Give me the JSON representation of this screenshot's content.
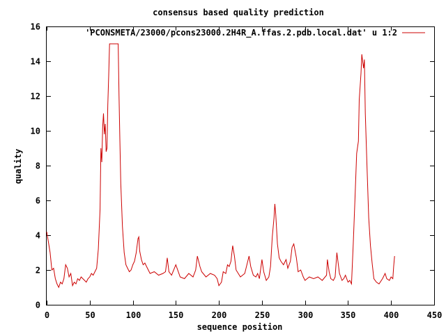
{
  "chart_data": {
    "type": "line",
    "title": "consensus based quality prediction",
    "xlabel": "sequence position",
    "ylabel": "quality",
    "xlim": [
      0,
      450
    ],
    "ylim": [
      0,
      16
    ],
    "xticks": [
      0,
      50,
      100,
      150,
      200,
      250,
      300,
      350,
      400,
      450
    ],
    "yticks": [
      0,
      2,
      4,
      6,
      8,
      10,
      12,
      14,
      16
    ],
    "grid": false,
    "legend_position": "top-right",
    "series": [
      {
        "name": "'PCONSMETA/23000/pcons23000.2H4R_A.ffas.2.pdb.local.dat' u 1:2",
        "color": "#cc0000",
        "x": [
          0,
          2,
          4,
          6,
          8,
          10,
          12,
          14,
          16,
          18,
          20,
          22,
          24,
          26,
          28,
          30,
          32,
          34,
          36,
          38,
          40,
          42,
          44,
          46,
          48,
          50,
          52,
          54,
          56,
          58,
          60,
          62,
          63,
          64,
          65,
          66,
          67,
          68,
          69,
          70,
          71,
          72,
          73,
          75,
          80,
          83,
          84,
          85,
          86,
          88,
          90,
          92,
          94,
          96,
          98,
          100,
          102,
          104,
          106,
          107,
          108,
          110,
          112,
          114,
          116,
          118,
          120,
          125,
          130,
          135,
          138,
          140,
          142,
          145,
          150,
          155,
          160,
          165,
          170,
          173,
          175,
          178,
          180,
          185,
          190,
          195,
          198,
          200,
          203,
          205,
          208,
          210,
          212,
          214,
          216,
          218,
          220,
          225,
          230,
          233,
          235,
          237,
          240,
          243,
          245,
          247,
          250,
          252,
          255,
          258,
          260,
          262,
          264,
          265,
          266,
          268,
          270,
          272,
          275,
          278,
          280,
          283,
          285,
          287,
          290,
          292,
          295,
          298,
          300,
          305,
          310,
          315,
          320,
          325,
          326,
          328,
          330,
          333,
          335,
          337,
          340,
          343,
          345,
          347,
          350,
          352,
          354,
          356,
          358,
          360,
          362,
          363,
          364,
          365,
          366,
          367,
          368,
          369,
          370,
          372,
          374,
          376,
          378,
          380,
          383,
          386,
          390,
          393,
          395,
          398,
          400,
          402,
          403,
          404
        ],
        "values": [
          4.2,
          3.6,
          3.0,
          2.0,
          2.1,
          1.5,
          1.2,
          1.0,
          1.3,
          1.2,
          1.5,
          2.3,
          2.1,
          1.6,
          1.8,
          1.1,
          1.3,
          1.2,
          1.5,
          1.4,
          1.6,
          1.5,
          1.4,
          1.3,
          1.5,
          1.6,
          1.8,
          1.7,
          1.9,
          2.1,
          3.2,
          5.5,
          9.0,
          8.2,
          10.2,
          11.0,
          9.8,
          10.4,
          8.8,
          9.0,
          11.5,
          13.2,
          15.0,
          15.0,
          15.0,
          15.0,
          12.0,
          9.5,
          7.0,
          4.5,
          3.0,
          2.3,
          2.1,
          1.9,
          2.0,
          2.3,
          2.5,
          3.0,
          3.8,
          3.9,
          3.1,
          2.6,
          2.3,
          2.4,
          2.2,
          2.0,
          1.8,
          1.9,
          1.7,
          1.8,
          1.9,
          2.7,
          1.9,
          1.7,
          2.3,
          1.6,
          1.5,
          1.8,
          1.6,
          2.0,
          2.8,
          2.2,
          1.9,
          1.6,
          1.8,
          1.7,
          1.5,
          1.1,
          1.3,
          1.9,
          1.8,
          2.3,
          2.2,
          2.5,
          3.4,
          2.8,
          2.0,
          1.6,
          1.8,
          2.4,
          2.8,
          2.2,
          1.7,
          1.6,
          1.8,
          1.5,
          2.6,
          1.9,
          1.4,
          1.6,
          2.2,
          3.9,
          5.0,
          5.8,
          5.2,
          3.5,
          2.7,
          2.5,
          2.3,
          2.6,
          2.1,
          2.5,
          3.3,
          3.5,
          2.7,
          1.9,
          2.0,
          1.6,
          1.4,
          1.6,
          1.5,
          1.6,
          1.4,
          1.7,
          2.6,
          1.9,
          1.5,
          1.4,
          1.6,
          3.0,
          1.8,
          1.4,
          1.5,
          1.7,
          1.3,
          1.4,
          1.2,
          3.5,
          6.0,
          8.7,
          9.4,
          11.8,
          12.5,
          13.3,
          14.4,
          14.0,
          13.6,
          14.1,
          11.0,
          8.0,
          5.0,
          3.4,
          2.4,
          1.5,
          1.3,
          1.2,
          1.5,
          1.8,
          1.5,
          1.4,
          1.6,
          1.5,
          2.2,
          2.8
        ]
      }
    ]
  }
}
